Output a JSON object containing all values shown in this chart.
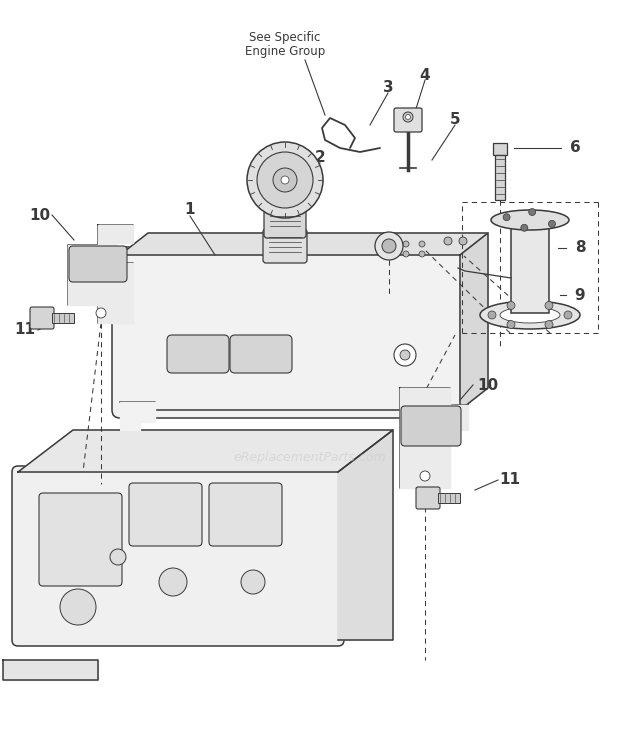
{
  "bg_color": "#ffffff",
  "lc": "#3a3a3a",
  "lc2": "#555555",
  "wm_color": "#cccccc",
  "figw": 6.2,
  "figh": 7.34,
  "dpi": 100,
  "watermark": "eReplacementParts.com"
}
